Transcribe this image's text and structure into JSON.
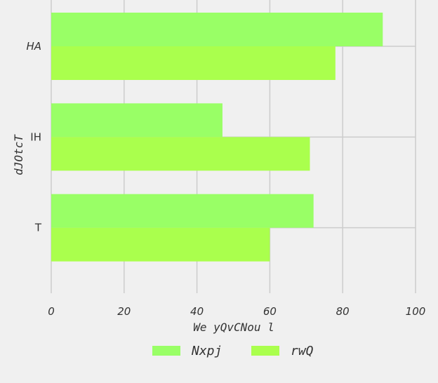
{
  "chart_data": {
    "type": "bar",
    "orientation": "horizontal",
    "categories": [
      "HA",
      "IH",
      "T"
    ],
    "series": [
      {
        "name": "Nxpj",
        "values": [
          91,
          47,
          72
        ],
        "color": "#99ff66"
      },
      {
        "name": "rwQ",
        "values": [
          78,
          71,
          60
        ],
        "color": "#aaff4d"
      }
    ],
    "xlabel": "We yQvCNou  l",
    "ylabel": "dJOtcT",
    "xlim": [
      0,
      100
    ],
    "xticks": [
      0,
      20,
      40,
      60,
      80,
      100
    ],
    "grid": true,
    "legend_position": "bottom-center",
    "background": "#f0f0f0",
    "grid_color": "#cccccc"
  }
}
